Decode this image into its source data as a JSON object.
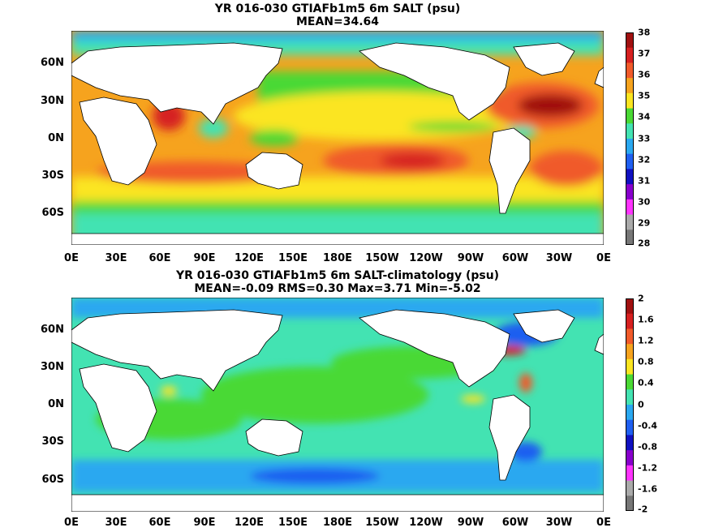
{
  "top_panel": {
    "title_line1": "YR 016-030 GTIAFb1m5 6m SALT (psu)",
    "title_line2": "MEAN=34.64",
    "colorbar_labels": [
      "38",
      "37",
      "36",
      "35",
      "34",
      "33",
      "32",
      "31",
      "30",
      "29",
      "28"
    ],
    "colorbar_colors": [
      "#a01010",
      "#d62020",
      "#f05a2a",
      "#f6a31e",
      "#fbe520",
      "#4ad934",
      "#43e3b2",
      "#2aa8f0",
      "#1f5ff0",
      "#1010c0",
      "#8800cc",
      "#ff33ff",
      "#aaaaaa",
      "#777777"
    ]
  },
  "bottom_panel": {
    "title_line1": "YR 016-030 GTIAFb1m5 6m SALT-climatology (psu)",
    "title_line2": "MEAN=-0.09   RMS=0.30   Max=3.71   Min=-5.02",
    "colorbar_labels": [
      "2",
      "1.6",
      "1.2",
      "0.8",
      "0.4",
      "0",
      "-0.4",
      "-0.8",
      "-1.2",
      "-1.6",
      "-2"
    ],
    "colorbar_colors": [
      "#a01010",
      "#d62020",
      "#f05a2a",
      "#f6a31e",
      "#fbe520",
      "#4ad934",
      "#43e3b2",
      "#2aa8f0",
      "#1f5ff0",
      "#1010c0",
      "#8800cc",
      "#ff33ff",
      "#aaaaaa",
      "#777777"
    ]
  },
  "lat_labels": [
    "60N",
    "30N",
    "0N",
    "30S",
    "60S"
  ],
  "lon_labels": [
    "0E",
    "30E",
    "60E",
    "90E",
    "120E",
    "150E",
    "180E",
    "150W",
    "120W",
    "90W",
    "60W",
    "30W",
    "0E"
  ]
}
